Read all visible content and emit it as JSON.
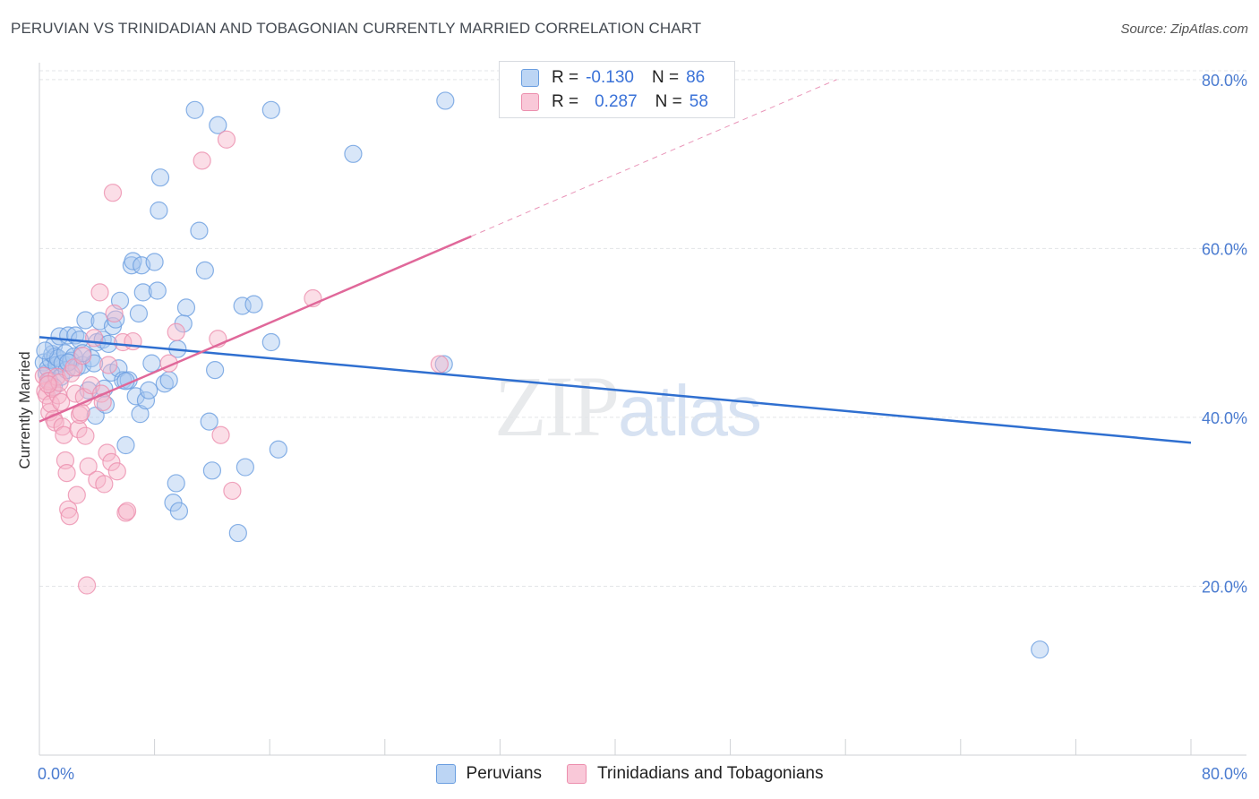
{
  "title": "PERUVIAN VS TRINIDADIAN AND TOBAGONIAN CURRENTLY MARRIED CORRELATION CHART",
  "source": "Source: ZipAtlas.com",
  "watermark": {
    "zip": "ZIP",
    "atlas": "atlas"
  },
  "legend_top": {
    "rows": [
      {
        "r_label": "R =",
        "r_value": "-0.130",
        "n_label": "N =",
        "n_value": "86"
      },
      {
        "r_label": "R =",
        "r_value": "0.287",
        "n_label": "N =",
        "n_value": "58"
      }
    ]
  },
  "colors": {
    "blue_fill": "#a9c8f0",
    "blue_stroke": "#6a9ee0",
    "blue_line": "#2f6fd0",
    "pink_fill": "#f6b5ca",
    "pink_stroke": "#ec8fae",
    "pink_line": "#e0689a",
    "grid": "#e3e5e8",
    "axis_label": "#4a7bd0"
  },
  "chart_data": {
    "type": "scatter",
    "xlabel": "",
    "ylabel": "Currently Married",
    "xlim": [
      0,
      80
    ],
    "ylim": [
      0,
      82
    ],
    "x_tick_labels": [
      "0.0%",
      "80.0%"
    ],
    "y_ticks": [
      20,
      40,
      60,
      80
    ],
    "y_tick_labels": [
      "20.0%",
      "40.0%",
      "60.0%",
      "80.0%"
    ],
    "grid": true,
    "legend_position": "top-center",
    "series": [
      {
        "name": "Peruvians",
        "color": "#6a9ee0",
        "R": -0.13,
        "N": 86,
        "trend": {
          "x": [
            0,
            80
          ],
          "y": [
            49.5,
            37.0
          ],
          "solid_until": 80
        },
        "points": [
          [
            0.3,
            46.5
          ],
          [
            0.5,
            45.2
          ],
          [
            0.6,
            45.8
          ],
          [
            0.7,
            44.3
          ],
          [
            0.8,
            46.8
          ],
          [
            0.9,
            47.5
          ],
          [
            1.0,
            48.5
          ],
          [
            1.1,
            47.2
          ],
          [
            1.2,
            46.2
          ],
          [
            1.3,
            47.0
          ],
          [
            1.4,
            49.6
          ],
          [
            1.5,
            44.8
          ],
          [
            1.6,
            46.4
          ],
          [
            1.8,
            47.6
          ],
          [
            1.9,
            45.6
          ],
          [
            2.0,
            49.7
          ],
          [
            2.2,
            46.7
          ],
          [
            2.4,
            47.2
          ],
          [
            2.5,
            49.7
          ],
          [
            2.6,
            45.9
          ],
          [
            2.8,
            49.2
          ],
          [
            3.0,
            46.2
          ],
          [
            3.2,
            51.5
          ],
          [
            3.4,
            43.2
          ],
          [
            3.6,
            47.0
          ],
          [
            3.8,
            46.4
          ],
          [
            3.9,
            40.2
          ],
          [
            4.0,
            48.9
          ],
          [
            4.2,
            51.4
          ],
          [
            4.4,
            49.2
          ],
          [
            4.5,
            43.4
          ],
          [
            4.6,
            41.5
          ],
          [
            4.8,
            48.7
          ],
          [
            5.0,
            45.3
          ],
          [
            5.1,
            50.8
          ],
          [
            5.3,
            51.6
          ],
          [
            5.5,
            45.8
          ],
          [
            5.6,
            53.8
          ],
          [
            5.8,
            44.4
          ],
          [
            6.0,
            36.7
          ],
          [
            6.2,
            44.4
          ],
          [
            6.4,
            58.0
          ],
          [
            6.5,
            58.5
          ],
          [
            6.7,
            42.5
          ],
          [
            6.9,
            52.3
          ],
          [
            7.0,
            40.4
          ],
          [
            7.1,
            58.0
          ],
          [
            7.2,
            54.8
          ],
          [
            7.4,
            42.0
          ],
          [
            7.6,
            43.2
          ],
          [
            7.8,
            46.4
          ],
          [
            8.0,
            58.4
          ],
          [
            8.2,
            55.0
          ],
          [
            8.3,
            64.5
          ],
          [
            8.4,
            68.4
          ],
          [
            8.7,
            44.0
          ],
          [
            9.0,
            44.4
          ],
          [
            9.3,
            29.9
          ],
          [
            9.5,
            32.2
          ],
          [
            9.6,
            48.1
          ],
          [
            9.7,
            28.9
          ],
          [
            10.0,
            51.1
          ],
          [
            10.2,
            53.0
          ],
          [
            10.8,
            76.4
          ],
          [
            11.1,
            62.1
          ],
          [
            11.5,
            57.4
          ],
          [
            11.8,
            39.5
          ],
          [
            12.0,
            33.7
          ],
          [
            12.2,
            45.6
          ],
          [
            12.4,
            74.6
          ],
          [
            13.8,
            26.3
          ],
          [
            14.1,
            53.2
          ],
          [
            14.3,
            34.1
          ],
          [
            14.9,
            53.4
          ],
          [
            16.1,
            48.9
          ],
          [
            16.6,
            36.2
          ],
          [
            16.1,
            76.4
          ],
          [
            21.8,
            71.2
          ],
          [
            28.1,
            46.3
          ],
          [
            28.2,
            77.5
          ],
          [
            0.4,
            47.9
          ],
          [
            1.0,
            43.6
          ],
          [
            2.0,
            46.5
          ],
          [
            3.0,
            47.6
          ],
          [
            69.5,
            12.5
          ],
          [
            6.0,
            44.3
          ]
        ]
      },
      {
        "name": "Trinidadians and Tobagonians",
        "color": "#ec8fae",
        "R": 0.287,
        "N": 58,
        "trend": {
          "x": [
            0,
            80
          ],
          "y": [
            39.5,
            98.0
          ],
          "solid_until": 30
        },
        "points": [
          [
            0.3,
            44.9
          ],
          [
            0.4,
            43.1
          ],
          [
            0.5,
            42.6
          ],
          [
            0.6,
            44.3
          ],
          [
            0.7,
            40.6
          ],
          [
            0.8,
            41.6
          ],
          [
            0.9,
            43.4
          ],
          [
            1.0,
            39.8
          ],
          [
            1.1,
            39.4
          ],
          [
            1.2,
            44.8
          ],
          [
            1.3,
            42.6
          ],
          [
            1.4,
            44.1
          ],
          [
            1.5,
            41.8
          ],
          [
            1.6,
            38.9
          ],
          [
            1.7,
            37.9
          ],
          [
            1.8,
            34.9
          ],
          [
            1.9,
            33.4
          ],
          [
            2.0,
            29.1
          ],
          [
            2.1,
            28.3
          ],
          [
            2.2,
            45.2
          ],
          [
            2.4,
            45.9
          ],
          [
            2.5,
            42.8
          ],
          [
            2.6,
            30.8
          ],
          [
            2.7,
            38.6
          ],
          [
            2.8,
            40.3
          ],
          [
            2.9,
            40.6
          ],
          [
            3.0,
            47.3
          ],
          [
            3.1,
            42.4
          ],
          [
            3.2,
            37.8
          ],
          [
            3.3,
            20.1
          ],
          [
            3.4,
            34.2
          ],
          [
            3.6,
            43.8
          ],
          [
            3.8,
            49.4
          ],
          [
            4.0,
            32.6
          ],
          [
            4.2,
            54.8
          ],
          [
            4.3,
            42.8
          ],
          [
            4.4,
            41.8
          ],
          [
            4.5,
            32.1
          ],
          [
            4.7,
            35.8
          ],
          [
            4.8,
            46.2
          ],
          [
            5.0,
            34.7
          ],
          [
            5.1,
            66.6
          ],
          [
            5.2,
            52.3
          ],
          [
            5.4,
            33.6
          ],
          [
            5.8,
            48.9
          ],
          [
            6.0,
            28.7
          ],
          [
            6.1,
            28.9
          ],
          [
            6.5,
            49.0
          ],
          [
            9.0,
            46.4
          ],
          [
            9.5,
            50.1
          ],
          [
            11.3,
            70.4
          ],
          [
            12.4,
            49.3
          ],
          [
            12.6,
            37.9
          ],
          [
            13.0,
            72.9
          ],
          [
            13.4,
            31.3
          ],
          [
            19.0,
            54.1
          ],
          [
            27.8,
            46.3
          ],
          [
            0.6,
            43.9
          ]
        ]
      }
    ]
  }
}
